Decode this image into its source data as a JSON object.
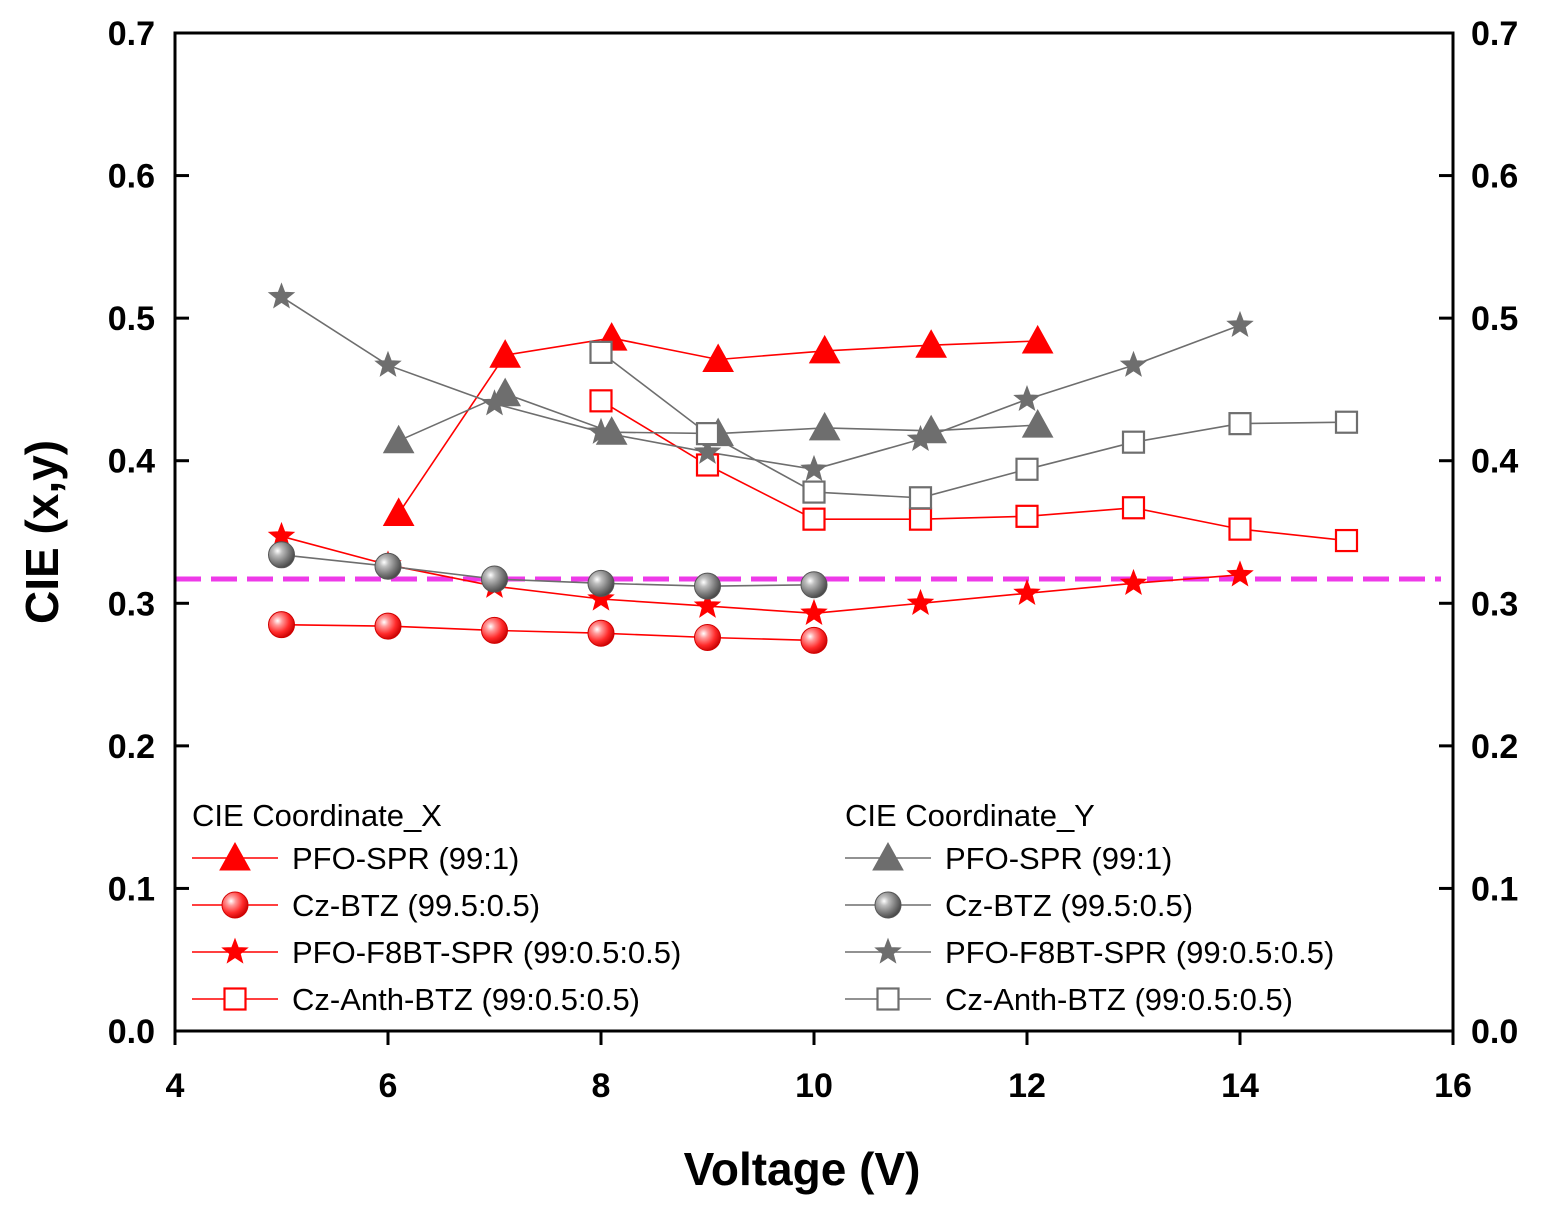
{
  "chart_data": {
    "type": "line",
    "title": "",
    "xlabel": "Voltage (V)",
    "ylabel": "CIE (x,y)",
    "xlim": [
      4,
      16
    ],
    "ylim": [
      0.0,
      0.7
    ],
    "x_ticks": [
      "4",
      "6",
      "8",
      "10",
      "12",
      "14",
      "16"
    ],
    "y_ticks": [
      "0.0",
      "0.1",
      "0.2",
      "0.3",
      "0.4",
      "0.5",
      "0.6",
      "0.7"
    ],
    "right_y_ticks": [
      "0.0",
      "0.1",
      "0.2",
      "0.3",
      "0.4",
      "0.5",
      "0.6",
      "0.7"
    ],
    "reference_line": {
      "y": 0.317,
      "style": "dashed",
      "color": "#ee3ae8"
    },
    "legend": {
      "x_group_title": "CIE Coordinate_X",
      "y_group_title": "CIE Coordinate_Y",
      "placement": "bottom"
    },
    "series": [
      {
        "name": "PFO-SPR (99:1)",
        "group": "X",
        "marker": "triangle",
        "color": "#ff0000",
        "x": [
          6.1,
          7.1,
          8.1,
          9.1,
          10.1,
          11.1,
          12.1
        ],
        "y": [
          0.363,
          0.474,
          0.486,
          0.471,
          0.477,
          0.481,
          0.484
        ]
      },
      {
        "name": "Cz-BTZ (99.5:0.5)",
        "group": "X",
        "marker": "sphere",
        "color": "#ff0000",
        "x": [
          5,
          6,
          7,
          8,
          9,
          10
        ],
        "y": [
          0.285,
          0.284,
          0.281,
          0.279,
          0.276,
          0.274
        ]
      },
      {
        "name": "PFO-F8BT-SPR (99:0.5:0.5)",
        "group": "X",
        "marker": "star",
        "color": "#ff0000",
        "x": [
          5,
          6,
          7,
          8,
          9,
          10,
          11,
          12,
          13,
          14
        ],
        "y": [
          0.347,
          0.327,
          0.312,
          0.303,
          0.298,
          0.293,
          0.3,
          0.307,
          0.314,
          0.32
        ]
      },
      {
        "name": "Cz-Anth-BTZ (99:0.5:0.5)",
        "group": "X",
        "marker": "open-square",
        "color": "#ff0000",
        "x": [
          8,
          9,
          10,
          11,
          12,
          13,
          14,
          15
        ],
        "y": [
          0.442,
          0.397,
          0.359,
          0.359,
          0.361,
          0.367,
          0.352,
          0.344
        ]
      },
      {
        "name": "PFO-SPR (99:1)",
        "group": "Y",
        "marker": "triangle",
        "color": "#6e6e6e",
        "x": [
          6.1,
          7.1,
          8.1,
          9.1,
          10.1,
          11.1,
          12.1
        ],
        "y": [
          0.414,
          0.447,
          0.42,
          0.419,
          0.423,
          0.421,
          0.425
        ]
      },
      {
        "name": "Cz-BTZ (99.5:0.5)",
        "group": "Y",
        "marker": "sphere",
        "color": "#6e6e6e",
        "x": [
          5,
          6,
          7,
          8,
          9,
          10
        ],
        "y": [
          0.334,
          0.326,
          0.317,
          0.314,
          0.312,
          0.313
        ]
      },
      {
        "name": "PFO-F8BT-SPR (99:0.5:0.5)",
        "group": "Y",
        "marker": "star",
        "color": "#6e6e6e",
        "x": [
          5,
          6,
          7,
          8,
          9,
          10,
          11,
          12,
          13,
          14
        ],
        "y": [
          0.515,
          0.467,
          0.44,
          0.42,
          0.406,
          0.394,
          0.415,
          0.443,
          0.467,
          0.495
        ]
      },
      {
        "name": "Cz-Anth-BTZ (99:0.5:0.5)",
        "group": "Y",
        "marker": "open-square",
        "color": "#6e6e6e",
        "x": [
          8,
          9,
          10,
          11,
          12,
          13,
          14,
          15
        ],
        "y": [
          0.476,
          0.419,
          0.378,
          0.374,
          0.394,
          0.413,
          0.426,
          0.427
        ]
      }
    ]
  }
}
